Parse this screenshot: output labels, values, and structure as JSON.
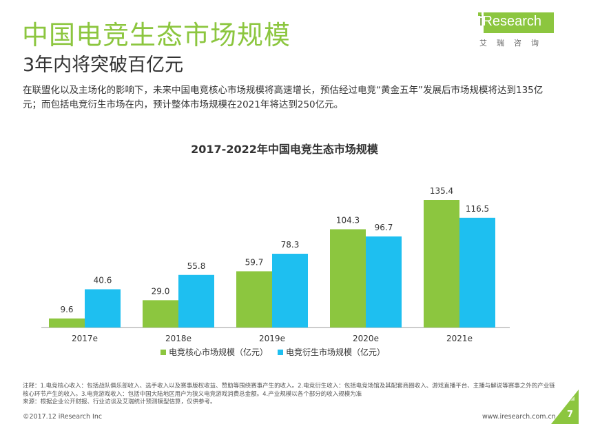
{
  "header": {
    "title": "中国电竞生态市场规模",
    "subtitle": "3年内将突破百亿元",
    "description": "在联盟化以及主场化的影响下，未来中国电竞核心市场规模将高速增长，预估经过电竞“黄金五年”发展后市场规模将达到135亿元；而包括电竞衍生市场在内，预计整体市场规模在2021年将达到250亿元。"
  },
  "logo": {
    "letter": "i",
    "rest": "Research",
    "cn": "艾瑞咨询"
  },
  "colors": {
    "brand_green": "#8cc63f",
    "series1": "#8cc63f",
    "series2": "#1ebff0",
    "axis": "#999999"
  },
  "chart_data": {
    "type": "bar",
    "title": "2017-2022年中国电竞生态市场规模",
    "categories": [
      "2017e",
      "2018e",
      "2019e",
      "2020e",
      "2021e"
    ],
    "series": [
      {
        "name": "电竞核心市场规模（亿元）",
        "values": [
          9.6,
          29.0,
          59.7,
          104.3,
          135.4
        ],
        "labels": [
          "9.6",
          "29.0",
          "59.7",
          "104.3",
          "135.4"
        ]
      },
      {
        "name": "电竞衍生市场规模（亿元）",
        "values": [
          40.6,
          55.8,
          78.3,
          96.7,
          116.5
        ],
        "labels": [
          "40.6",
          "55.8",
          "78.3",
          "96.7",
          "116.5"
        ]
      }
    ],
    "xlabel": "",
    "ylabel": "",
    "ylim": [
      0,
      135.4
    ],
    "legend": "bottom"
  },
  "notes": {
    "line1": "注释：1.电竞核心收入：包括战队俱乐部收入、选手收入以及赛事版权收益、赞助等围绕赛事产生的收入。2.电竞衍生收入：包括电竞场馆及其配套商圈收入、游戏直播平台、主播与解说等赛事之外的产业链核心环节产生的收入。3.电竞游戏收入：包括中国大陆地区用户为狭义电竞游戏消费总金额。4.产业规模以各个部分的收入规模为准",
    "line2": "来源：根据企业公开财报、行业访谈及艾瑞统计预测模型估算，仅供参考。"
  },
  "footer": {
    "copyright": "©2017.12 iResearch Inc",
    "website": "www.iresearch.com.cn",
    "page": "7"
  }
}
